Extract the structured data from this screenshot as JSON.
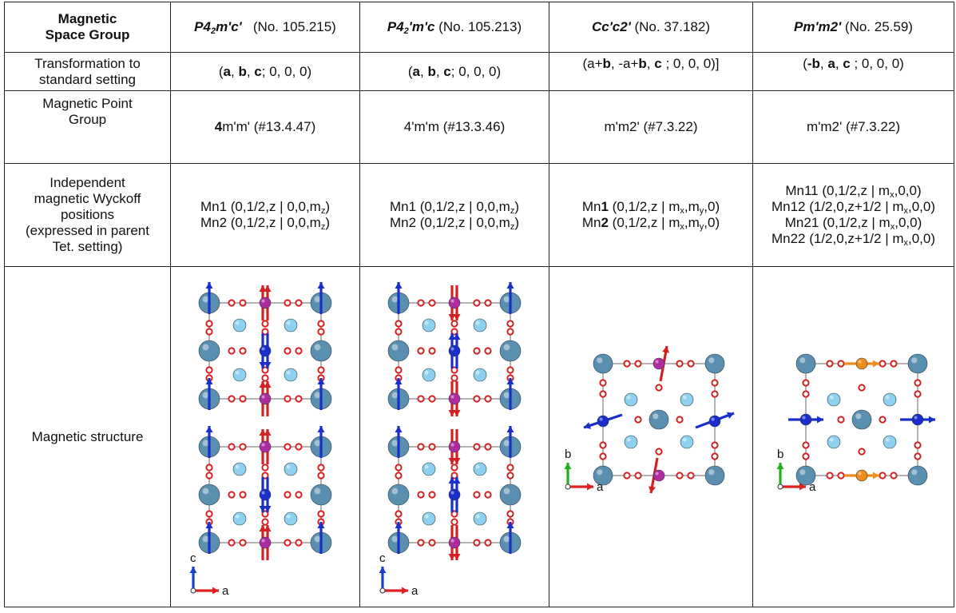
{
  "header": {
    "label_line1": "Magnetic",
    "label_line2": "Space Group",
    "groups": [
      {
        "sym_a": "P4",
        "sym_sub": "2",
        "sym_b": "m'c'",
        "num": "(No. 105.215)"
      },
      {
        "sym_a": "P4",
        "sym_sub": "2",
        "sym_b": "'m'c",
        "num": "(No. 105.213)"
      },
      {
        "sym_a": "",
        "sym_sub": "",
        "sym_b": "Cc'c2'",
        "num": "(No. 37.182)"
      },
      {
        "sym_a": "",
        "sym_sub": "",
        "sym_b": "Pm'm2'",
        "num": "(No. 25.59)"
      }
    ]
  },
  "transformation": {
    "label_line1": "Transformation to",
    "label_line2": "standard setting",
    "col1": {
      "open": "(",
      "a": "a",
      "s1": ", ",
      "b": "b",
      "s2": ", ",
      "c": "c",
      "tail": "; 0, 0, 0)"
    },
    "col2": {
      "open": "(",
      "a": "a",
      "s1": ", ",
      "b": "b",
      "s2": ", ",
      "c": "c",
      "tail": "; 0, 0, 0)"
    },
    "col3": {
      "p1": "(a+",
      "b": "b",
      "p2": ", -a+",
      "b2": "b",
      "p3": ", ",
      "c": "c",
      "tail": " ; 0, 0, 0)]"
    },
    "col4": {
      "open": "(",
      "neg_b": "-b",
      "p1": ", ",
      "a": "a",
      "p2": ", ",
      "c": "c",
      "tail": " ; 0, 0, 0)"
    }
  },
  "point_group": {
    "label_line1": "Magnetic Point",
    "label_line2": "Group",
    "col1_bold": "4",
    "col1_rest": "m'm' (#13.4.47)",
    "col2": "4'm'm (#13.3.46)",
    "col3": "m'm2' (#7.3.22)",
    "col4": "m'm2' (#7.3.22)"
  },
  "wyckoff": {
    "label": [
      "Independent",
      "magnetic Wyckoff",
      "positions",
      "(expressed in parent",
      "Tet. setting)"
    ],
    "col1": [
      {
        "pre": "Mn1 (0,1/2,z | 0,0,m",
        "sub": "z",
        "post": ")"
      },
      {
        "pre": "Mn2 (0,1/2,z | 0,0,m",
        "sub": "z",
        "post": ")"
      }
    ],
    "col2": [
      {
        "pre": "Mn1 (0,1/2,z | 0,0,m",
        "sub": "z",
        "post": ")"
      },
      {
        "pre": "Mn2 (0,1/2,z | 0,0,m",
        "sub": "z",
        "post": ")"
      }
    ],
    "col3": [
      {
        "name": "Mn",
        "num": "1",
        "pre": " (0,1/2,z | m",
        "sub1": "x",
        "mid": ",m",
        "sub2": "y",
        "post": ",0)"
      },
      {
        "name": "Mn",
        "num": "2",
        "pre": " (0,1/2,z | m",
        "sub1": "x",
        "mid": ",m",
        "sub2": "y",
        "post": ",0)"
      }
    ],
    "col4": [
      {
        "pre": "Mn11 (0,1/2,z | m",
        "sub": "x",
        "post": ",0,0)"
      },
      {
        "pre": "Mn12 (1/2,0,z+1/2 | m",
        "sub": "x",
        "post": ",0,0)"
      },
      {
        "pre": "Mn21 (0,1/2,z | m",
        "sub": "x",
        "post": ",0,0)"
      },
      {
        "pre": "Mn22 (1/2,0,z+1/2 | m",
        "sub": "x",
        "post": ",0,0)"
      }
    ]
  },
  "structure": {
    "label": "Magnetic structure",
    "axes_tet": {
      "vertical": "c",
      "horizontal": "a"
    },
    "axes_ortho": {
      "vertical": "b",
      "horizontal": "a"
    }
  },
  "colors": {
    "grid": "#222222",
    "large_atom": "#5a8fb0",
    "small_atom": "#8ed1ee",
    "oxygen": "#d62020",
    "mn_blue": "#1a2ecc",
    "mn_purple": "#b02aa0",
    "mn_orange": "#f08c1a",
    "axis_red": "#e02020",
    "axis_green": "#22b022",
    "axis_blue": "#1a40d0"
  }
}
